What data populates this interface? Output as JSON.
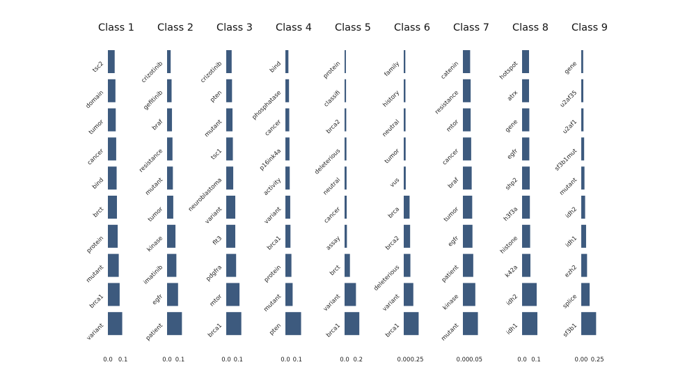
{
  "bar_color": "#3d5a7e",
  "chart_data": [
    {
      "type": "bar",
      "orientation": "horizontal",
      "title": "Class 1",
      "categories": [
        "tsc2",
        "domain",
        "tumor",
        "cancer",
        "bind",
        "brct",
        "protein",
        "mutant",
        "brca1",
        "variant"
      ],
      "values": [
        0.045,
        0.05,
        0.052,
        0.055,
        0.058,
        0.06,
        0.065,
        0.072,
        0.078,
        0.095
      ],
      "xlim": [
        0,
        0.12
      ],
      "xticks": [
        0.0,
        0.1
      ],
      "xticklabels": [
        "0.0",
        "0.1"
      ]
    },
    {
      "type": "bar",
      "orientation": "horizontal",
      "title": "Class 2",
      "categories": [
        "crizotinib",
        "gefitinib",
        "braf",
        "resistance",
        "mutant",
        "tumor",
        "kinase",
        "imatinib",
        "egfr",
        "patient"
      ],
      "values": [
        0.028,
        0.035,
        0.038,
        0.042,
        0.045,
        0.048,
        0.065,
        0.072,
        0.085,
        0.115
      ],
      "xlim": [
        0,
        0.14
      ],
      "xticks": [
        0.0,
        0.1
      ],
      "xticklabels": [
        "0.0",
        "0.1"
      ]
    },
    {
      "type": "bar",
      "orientation": "horizontal",
      "title": "Class 3",
      "categories": [
        "crizotinib",
        "pten",
        "mutant",
        "tsc1",
        "neuroblastoma",
        "variant",
        "flt3",
        "pdgfra",
        "mtor",
        "brca1"
      ],
      "values": [
        0.045,
        0.048,
        0.052,
        0.055,
        0.058,
        0.075,
        0.075,
        0.082,
        0.11,
        0.125
      ],
      "xlim": [
        0,
        0.15
      ],
      "xticks": [
        0.0,
        0.1
      ],
      "xticklabels": [
        "0.0",
        "0.1"
      ]
    },
    {
      "type": "bar",
      "orientation": "horizontal",
      "title": "Class 4",
      "categories": [
        "bind",
        "phosphatase",
        "cancer",
        "p16ink4a",
        "activity",
        "variant",
        "brca1",
        "protein",
        "mutant",
        "pten"
      ],
      "values": [
        0.025,
        0.03,
        0.032,
        0.034,
        0.036,
        0.04,
        0.042,
        0.05,
        0.06,
        0.13
      ],
      "xlim": [
        0,
        0.15
      ],
      "xticks": [
        0.0,
        0.1
      ],
      "xticklabels": [
        "0.0",
        "0.1"
      ]
    },
    {
      "type": "bar",
      "orientation": "horizontal",
      "title": "Class 5",
      "categories": [
        "protein",
        "classifi",
        "brca2",
        "deleterious",
        "neutral",
        "cancer",
        "assay",
        "brct",
        "variant",
        "brca1"
      ],
      "values": [
        0.02,
        0.022,
        0.025,
        0.028,
        0.03,
        0.032,
        0.035,
        0.08,
        0.17,
        0.22
      ],
      "xlim": [
        0,
        0.27
      ],
      "xticks": [
        0.0,
        0.2
      ],
      "xticklabels": [
        "0.0",
        "0.2"
      ]
    },
    {
      "type": "bar",
      "orientation": "horizontal",
      "title": "Class 6",
      "categories": [
        "family",
        "history",
        "neutral",
        "tumor",
        "vus",
        "brca",
        "brca2",
        "deleterious",
        "variant",
        "brca1"
      ],
      "values": [
        0.03,
        0.032,
        0.034,
        0.036,
        0.038,
        0.11,
        0.12,
        0.125,
        0.18,
        0.28
      ],
      "xlim": [
        0,
        0.34
      ],
      "xticks": [
        0.0,
        0.25
      ],
      "xticklabels": [
        "0.00",
        "0.25"
      ]
    },
    {
      "type": "bar",
      "orientation": "horizontal",
      "title": "Class 7",
      "categories": [
        "catenin",
        "resistance",
        "mtor",
        "cancer",
        "braf",
        "tumor",
        "egfr",
        "patient",
        "kinase",
        "mutant"
      ],
      "values": [
        0.028,
        0.03,
        0.03,
        0.032,
        0.034,
        0.036,
        0.037,
        0.04,
        0.048,
        0.058
      ],
      "xlim": [
        0,
        0.07
      ],
      "xticks": [
        0.0,
        0.05
      ],
      "xticklabels": [
        "0.00",
        "0.05"
      ]
    },
    {
      "type": "bar",
      "orientation": "horizontal",
      "title": "Class 8",
      "categories": [
        "hotspot",
        "atrx",
        "gene",
        "egfr",
        "shp2",
        "h3f3a",
        "histone",
        "k42a",
        "idh2",
        "idh1"
      ],
      "values": [
        0.05,
        0.05,
        0.052,
        0.052,
        0.055,
        0.056,
        0.058,
        0.06,
        0.105,
        0.11
      ],
      "xlim": [
        0,
        0.13
      ],
      "xticks": [
        0.0,
        0.1
      ],
      "xticklabels": [
        "0.0",
        "0.1"
      ]
    },
    {
      "type": "bar",
      "orientation": "horizontal",
      "title": "Class 9",
      "categories": [
        "gene",
        "u2af35",
        "u2af1",
        "sf3b1mut",
        "mutant",
        "idh2",
        "idh1",
        "ezh2",
        "splice",
        "sf3b1"
      ],
      "values": [
        0.03,
        0.032,
        0.035,
        0.045,
        0.05,
        0.06,
        0.075,
        0.09,
        0.13,
        0.23
      ],
      "xlim": [
        0,
        0.28
      ],
      "xticks": [
        0.0,
        0.25
      ],
      "xticklabels": [
        "0.00",
        "0.25"
      ]
    }
  ]
}
